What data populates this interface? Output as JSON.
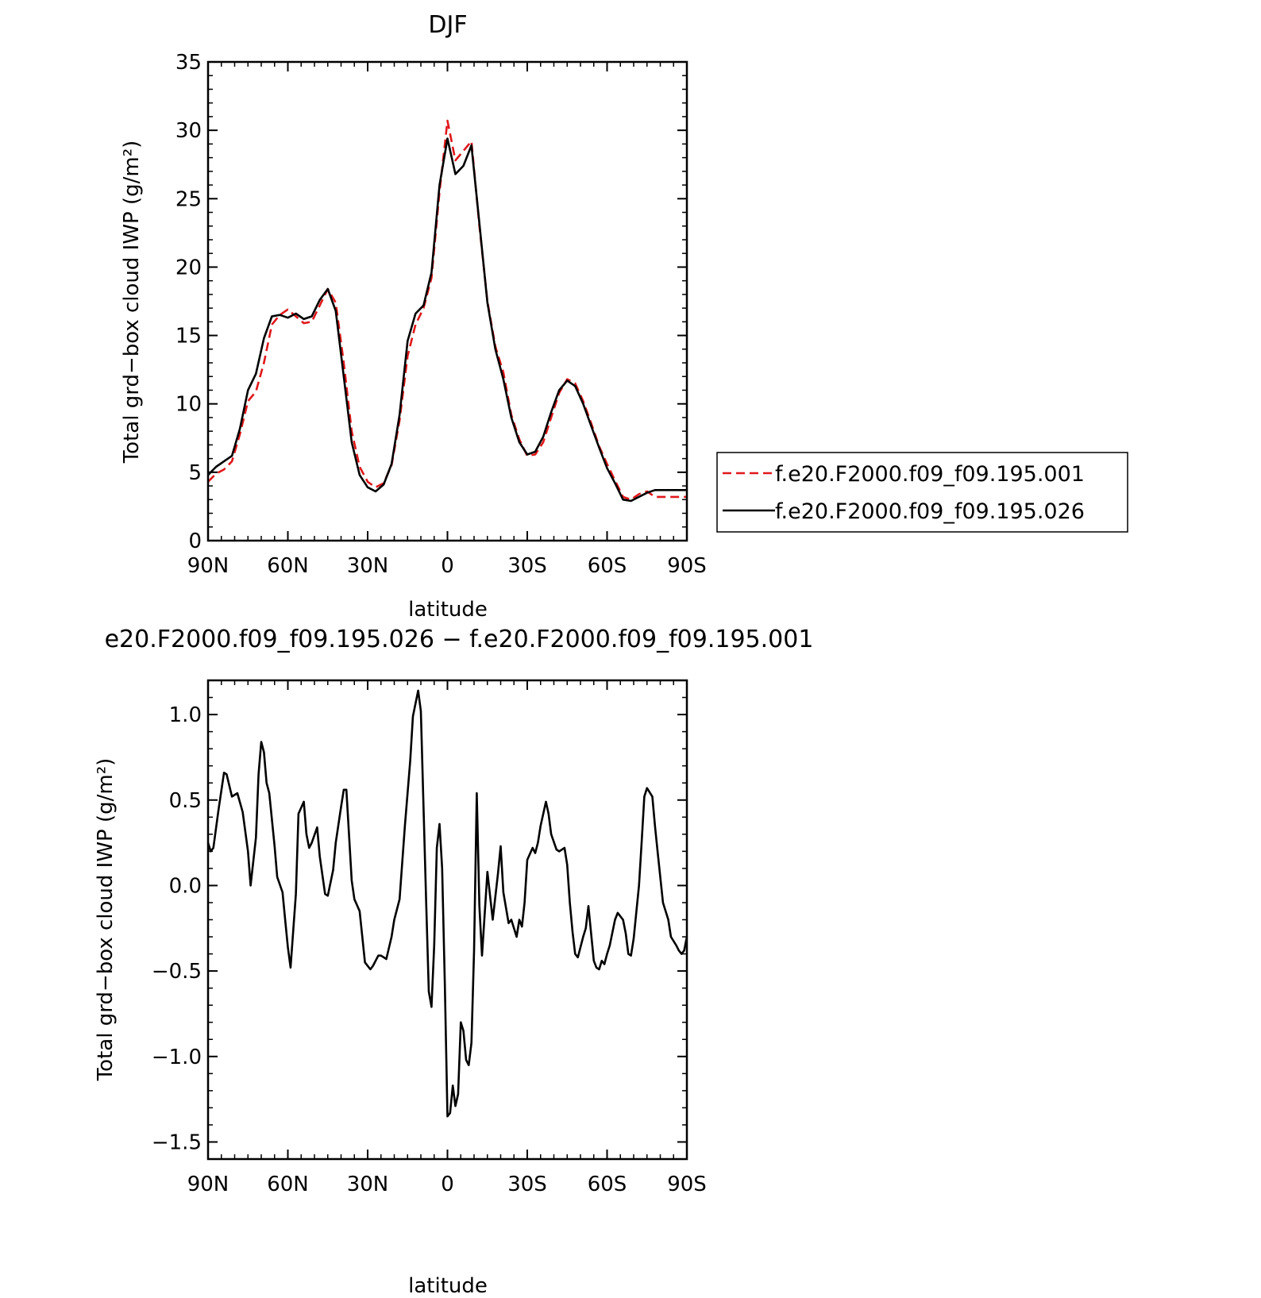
{
  "chart_data": [
    {
      "type": "line",
      "title": "DJF",
      "xlabel": "latitude",
      "ylabel": "Total grd−box cloud IWP (g/m²)",
      "xlim": [
        90,
        -90
      ],
      "ylim": [
        0,
        35
      ],
      "yticks": [
        0,
        5,
        10,
        15,
        20,
        25,
        30,
        35
      ],
      "yticklabels": [
        "0",
        "5",
        "10",
        "15",
        "20",
        "25",
        "30",
        "35"
      ],
      "xticks": [
        90,
        60,
        30,
        0,
        -30,
        -60,
        -90
      ],
      "xticklabels": [
        "90N",
        "60N",
        "30N",
        "0",
        "30S",
        "60S",
        "90S"
      ],
      "grid": false,
      "legend_position": "right",
      "series": [
        {
          "name": "f.e20.F2000.f09_f09.195.001",
          "color": "#e0181b",
          "dash": "dashed",
          "x": [
            90,
            87,
            84,
            81,
            78,
            75,
            72,
            69,
            66,
            63,
            60,
            57,
            54,
            51,
            48,
            45,
            42,
            39,
            36,
            33,
            30,
            27,
            24,
            21,
            18,
            15,
            12,
            9,
            6,
            3,
            0,
            -3,
            -6,
            -9,
            -12,
            -15,
            -18,
            -21,
            -24,
            -27,
            -30,
            -33,
            -36,
            -39,
            -42,
            -45,
            -48,
            -51,
            -54,
            -57,
            -60,
            -63,
            -66,
            -69,
            -72,
            -75,
            -78,
            -81,
            -84,
            -87,
            -90
          ],
          "y": [
            4.3,
            4.9,
            5.2,
            5.8,
            7.8,
            10.2,
            10.9,
            13.0,
            15.8,
            16.5,
            16.9,
            16.4,
            15.9,
            16.0,
            17.2,
            18.4,
            17.4,
            13.0,
            8.0,
            5.4,
            4.3,
            3.9,
            4.2,
            5.5,
            8.8,
            13.5,
            15.8,
            17.0,
            19.2,
            25.5,
            30.7,
            27.8,
            28.5,
            29.2,
            23.0,
            17.5,
            14.2,
            12.3,
            9.2,
            7.4,
            6.2,
            6.3,
            7.2,
            9.0,
            10.8,
            11.8,
            11.5,
            10.2,
            8.6,
            6.9,
            5.6,
            4.4,
            3.2,
            3.0,
            3.4,
            3.6,
            3.2,
            3.2,
            3.2,
            3.2,
            3.2
          ]
        },
        {
          "name": "f.e20.F2000.f09_f09.195.026",
          "color": "#000000",
          "dash": "solid",
          "x": [
            90,
            87,
            84,
            81,
            78,
            75,
            72,
            69,
            66,
            63,
            60,
            57,
            54,
            51,
            48,
            45,
            42,
            39,
            36,
            33,
            30,
            27,
            24,
            21,
            18,
            15,
            12,
            9,
            6,
            3,
            0,
            -3,
            -6,
            -9,
            -12,
            -15,
            -18,
            -21,
            -24,
            -27,
            -30,
            -33,
            -36,
            -39,
            -42,
            -45,
            -48,
            -51,
            -54,
            -57,
            -60,
            -63,
            -66,
            -69,
            -72,
            -75,
            -78,
            -81,
            -84,
            -87,
            -90
          ],
          "y": [
            4.8,
            5.4,
            5.8,
            6.2,
            8.2,
            11.0,
            12.2,
            14.8,
            16.4,
            16.5,
            16.3,
            16.6,
            16.2,
            16.4,
            17.6,
            18.4,
            16.8,
            12.0,
            7.2,
            4.8,
            3.9,
            3.6,
            4.1,
            5.6,
            9.2,
            14.6,
            16.6,
            17.2,
            19.6,
            26.0,
            29.4,
            26.8,
            27.4,
            28.9,
            23.2,
            17.4,
            14.0,
            11.8,
            9.0,
            7.2,
            6.3,
            6.5,
            7.6,
            9.4,
            11.0,
            11.7,
            11.3,
            10.0,
            8.4,
            6.8,
            5.3,
            4.2,
            3.0,
            2.9,
            3.2,
            3.5,
            3.7,
            3.7,
            3.7,
            3.7,
            3.7
          ]
        }
      ]
    },
    {
      "type": "line",
      "title": "e20.F2000.f09_f09.195.026 − f.e20.F2000.f09_f09.195.001",
      "xlabel": "latitude",
      "ylabel": "Total grd−box cloud IWP (g/m²)",
      "xlim": [
        90,
        -90
      ],
      "ylim": [
        -1.6,
        1.2
      ],
      "yticks": [
        -1.5,
        -1.0,
        -0.5,
        0.0,
        0.5,
        1.0
      ],
      "yticklabels": [
        "−1.5",
        "−1.0",
        "−0.5",
        "0.0",
        "0.5",
        "1.0"
      ],
      "xticks": [
        90,
        60,
        30,
        0,
        -30,
        -60,
        -90
      ],
      "xticklabels": [
        "90N",
        "60N",
        "30N",
        "0",
        "30S",
        "60S",
        "90S"
      ],
      "grid": false,
      "series": [
        {
          "color": "#000000",
          "dash": "solid",
          "x": [
            90,
            89,
            88,
            86,
            84,
            83,
            81,
            79,
            77,
            75,
            74,
            72,
            71,
            70,
            69,
            68,
            67,
            65,
            64,
            62,
            61,
            60,
            59,
            57,
            56,
            54,
            53,
            52,
            51,
            49,
            48,
            46,
            45,
            43,
            42,
            40,
            39,
            38,
            36,
            35,
            33,
            31,
            29,
            28,
            26,
            25,
            23,
            21,
            20,
            18,
            16,
            14,
            13,
            11,
            10,
            9,
            8,
            7,
            6,
            5,
            4,
            3,
            2,
            1,
            0,
            -1,
            -2,
            -3,
            -4,
            -5,
            -6,
            -7,
            -8,
            -9,
            -10,
            -11,
            -12,
            -13,
            -15,
            -17,
            -19,
            -20,
            -21,
            -23,
            -24,
            -26,
            -27,
            -28,
            -29,
            -30,
            -32,
            -33,
            -34,
            -35,
            -37,
            -38,
            -39,
            -41,
            -42,
            -44,
            -45,
            -46,
            -47,
            -48,
            -49,
            -51,
            -52,
            -53,
            -55,
            -56,
            -57,
            -58,
            -59,
            -60,
            -61,
            -63,
            -64,
            -66,
            -67,
            -68,
            -69,
            -70,
            -72,
            -73,
            -74,
            -75,
            -77,
            -78,
            -79,
            -80,
            -81,
            -83,
            -84,
            -86,
            -87,
            -88,
            -89,
            -90
          ],
          "y": [
            0.25,
            0.2,
            0.22,
            0.45,
            0.66,
            0.65,
            0.52,
            0.54,
            0.43,
            0.2,
            0.0,
            0.28,
            0.65,
            0.84,
            0.78,
            0.6,
            0.54,
            0.23,
            0.05,
            -0.04,
            -0.2,
            -0.36,
            -0.48,
            -0.05,
            0.42,
            0.49,
            0.3,
            0.22,
            0.25,
            0.34,
            0.17,
            -0.05,
            -0.06,
            0.09,
            0.25,
            0.46,
            0.56,
            0.56,
            0.03,
            -0.08,
            -0.15,
            -0.45,
            -0.49,
            -0.47,
            -0.41,
            -0.41,
            -0.43,
            -0.3,
            -0.2,
            -0.08,
            0.35,
            0.73,
            0.99,
            1.14,
            1.02,
            0.45,
            -0.1,
            -0.62,
            -0.71,
            -0.35,
            0.22,
            0.36,
            0.1,
            -0.58,
            -1.35,
            -1.33,
            -1.17,
            -1.29,
            -1.22,
            -0.8,
            -0.85,
            -1.02,
            -1.05,
            -0.92,
            -0.38,
            0.54,
            -0.12,
            -0.41,
            0.08,
            -0.2,
            0.07,
            0.23,
            -0.04,
            -0.22,
            -0.2,
            -0.3,
            -0.2,
            -0.24,
            -0.1,
            0.15,
            0.22,
            0.19,
            0.25,
            0.35,
            0.49,
            0.42,
            0.3,
            0.21,
            0.2,
            0.22,
            0.12,
            -0.1,
            -0.27,
            -0.4,
            -0.42,
            -0.3,
            -0.25,
            -0.12,
            -0.44,
            -0.48,
            -0.49,
            -0.44,
            -0.46,
            -0.4,
            -0.35,
            -0.2,
            -0.16,
            -0.2,
            -0.28,
            -0.4,
            -0.41,
            -0.31,
            0.0,
            0.25,
            0.52,
            0.57,
            0.52,
            0.35,
            0.2,
            0.05,
            -0.1,
            -0.2,
            -0.3,
            -0.35,
            -0.38,
            -0.4,
            -0.38,
            -0.3
          ]
        }
      ]
    }
  ]
}
